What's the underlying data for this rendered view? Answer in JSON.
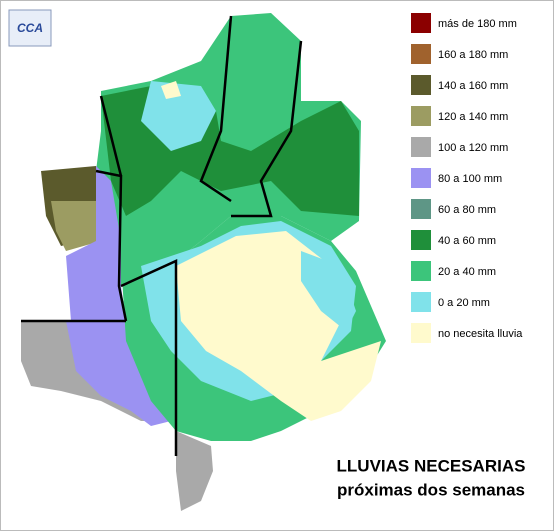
{
  "logo": "CCA",
  "legend": [
    {
      "label": "más de 180 mm",
      "color": "#8b0000"
    },
    {
      "label": "160 a 180 mm",
      "color": "#a0622d"
    },
    {
      "label": "140 a 160 mm",
      "color": "#5b5a2c"
    },
    {
      "label": "120 a 140 mm",
      "color": "#9c9c62"
    },
    {
      "label": "100 a 120 mm",
      "color": "#a9a9a9"
    },
    {
      "label": "80 a 100 mm",
      "color": "#9b92f2"
    },
    {
      "label": "60 a 80 mm",
      "color": "#5e9686"
    },
    {
      "label": "40 a 60 mm",
      "color": "#1f8f3a"
    },
    {
      "label": "20 a 40 mm",
      "color": "#3cc57b"
    },
    {
      "label": "0 a 20 mm",
      "color": "#80e2ea"
    },
    {
      "label": "no necesita lluvia",
      "color": "#fffacd"
    }
  ],
  "title": {
    "line1": "LLUVIAS NECESARIAS",
    "line2": "próximas dos semanas"
  }
}
